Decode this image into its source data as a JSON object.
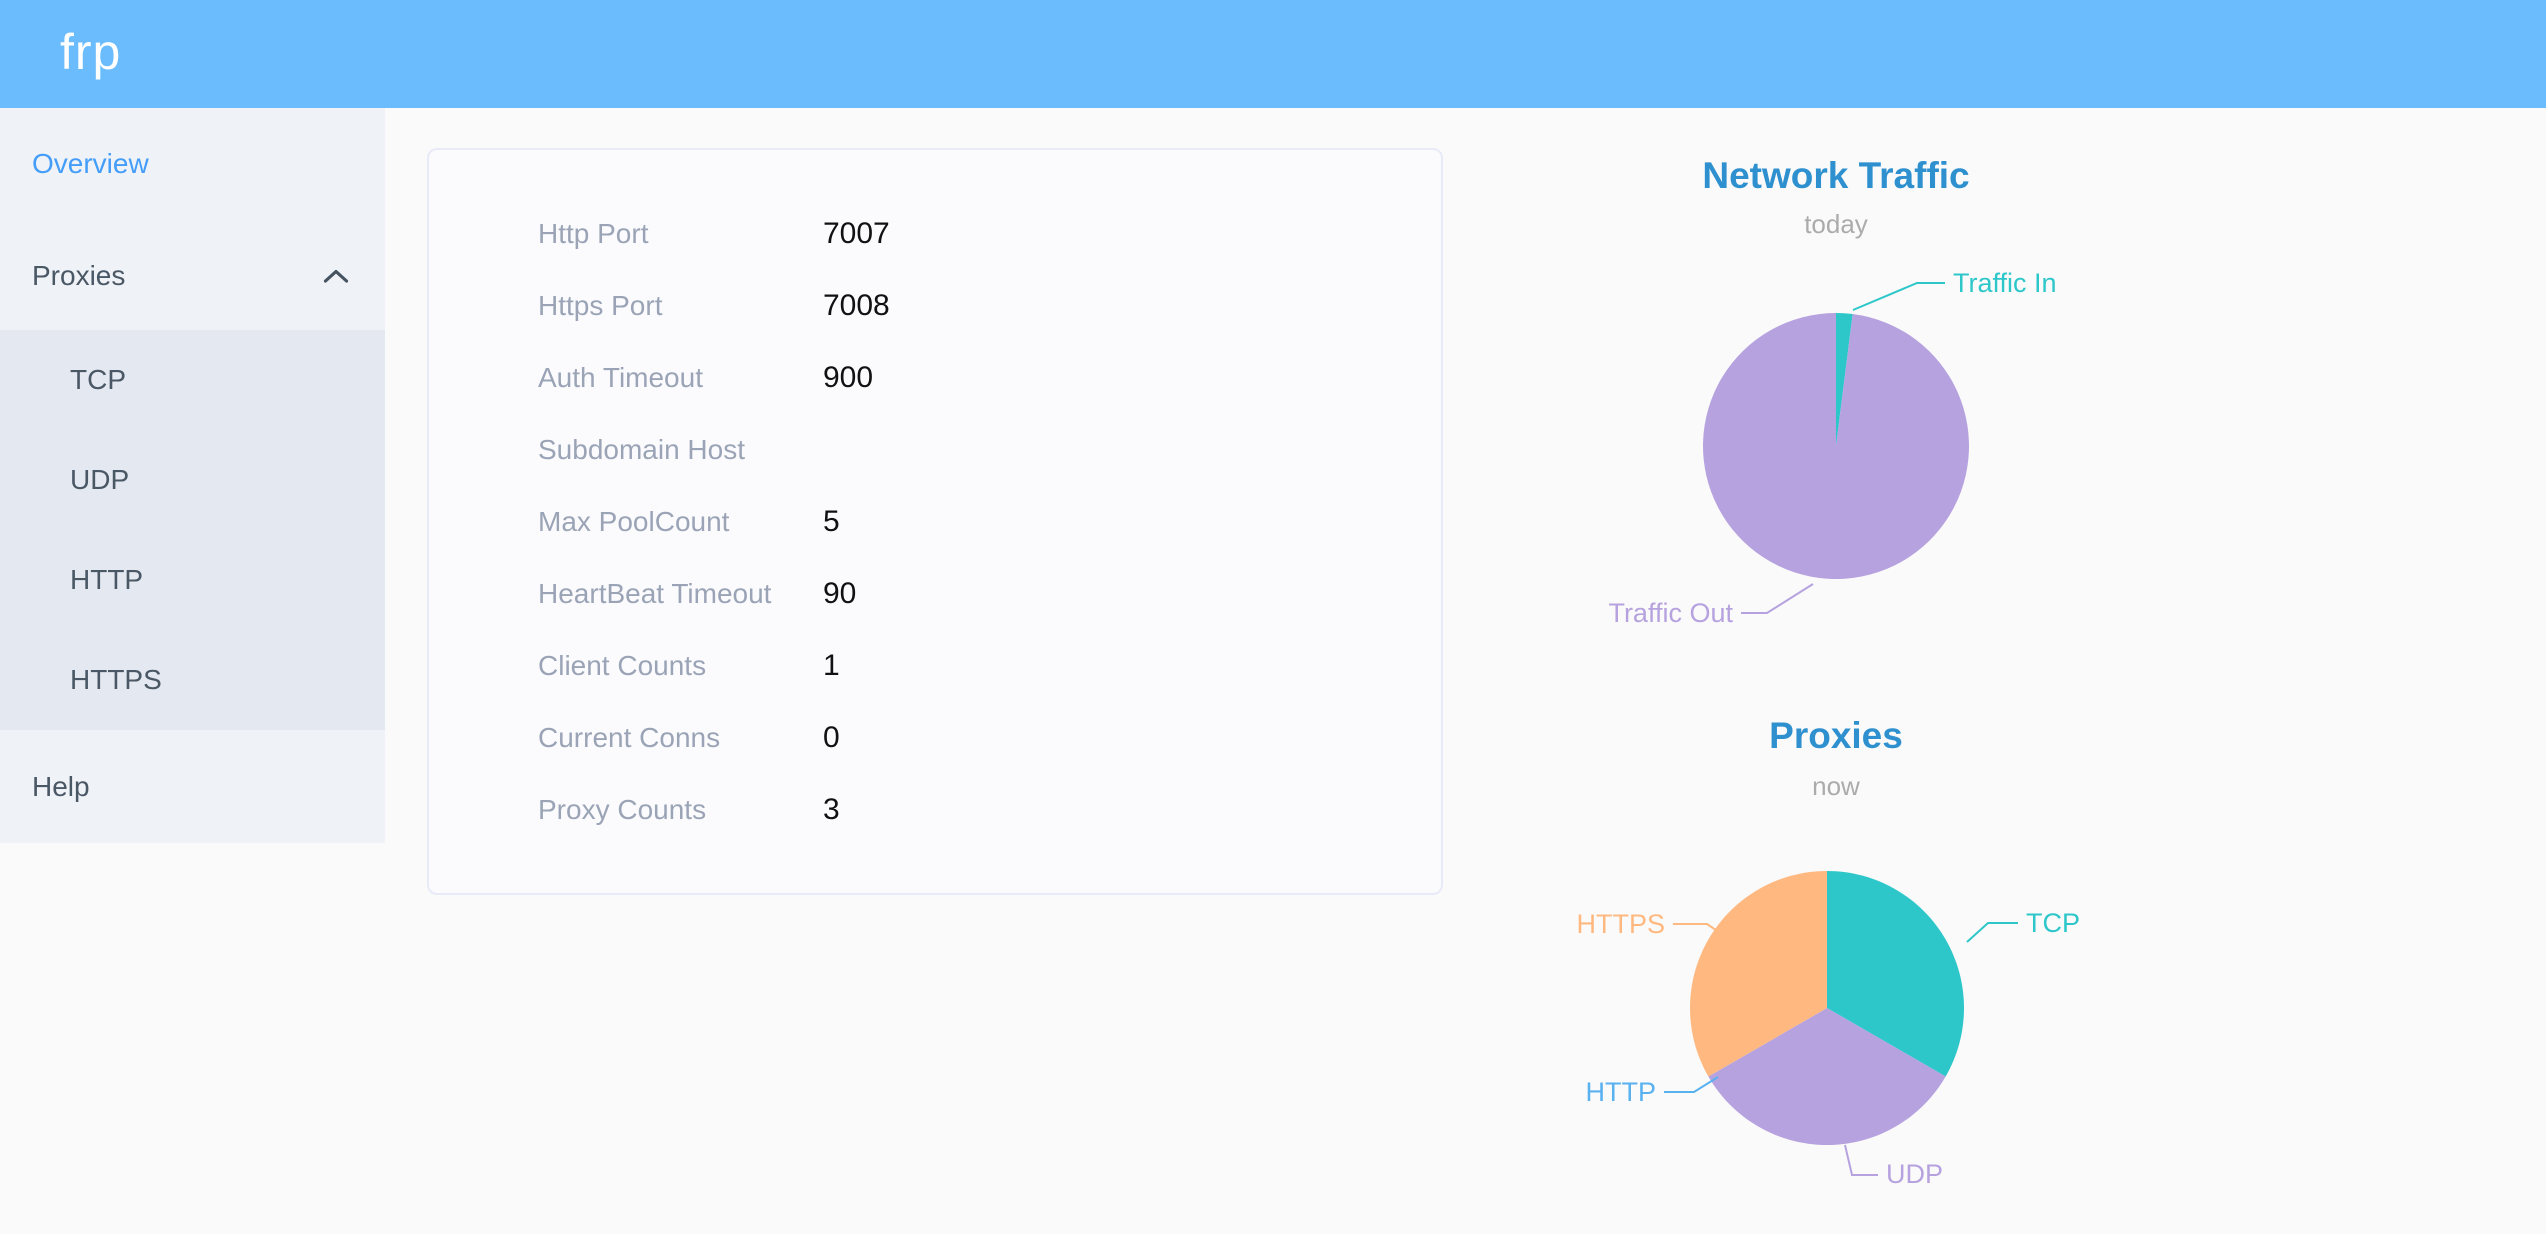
{
  "header": {
    "logo": "frp"
  },
  "sidebar": {
    "items": [
      {
        "label": "Overview",
        "active": true
      },
      {
        "label": "Proxies",
        "expanded": true,
        "children": [
          "TCP",
          "UDP",
          "HTTP",
          "HTTPS"
        ]
      },
      {
        "label": "Help",
        "active": false
      }
    ]
  },
  "overview_card": {
    "rows": [
      {
        "label": "Http Port",
        "value": "7007"
      },
      {
        "label": "Https Port",
        "value": "7008"
      },
      {
        "label": "Auth Timeout",
        "value": "900"
      },
      {
        "label": "Subdomain Host",
        "value": ""
      },
      {
        "label": "Max PoolCount",
        "value": "5"
      },
      {
        "label": "HeartBeat Timeout",
        "value": "90"
      },
      {
        "label": "Client Counts",
        "value": "1"
      },
      {
        "label": "Current Conns",
        "value": "0"
      },
      {
        "label": "Proxy Counts",
        "value": "3"
      }
    ]
  },
  "chart_data": [
    {
      "type": "pie",
      "title": "Network Traffic",
      "subtitle": "today",
      "labels": "callout",
      "legend_position": "outside-callout",
      "series": [
        {
          "name": "Traffic In",
          "value": 2,
          "color": "#2ec7c9"
        },
        {
          "name": "Traffic Out",
          "value": 98,
          "color": "#b6a2de"
        }
      ]
    },
    {
      "type": "pie",
      "title": "Proxies",
      "subtitle": "now",
      "labels": "callout",
      "legend_position": "outside-callout",
      "series": [
        {
          "name": "TCP",
          "value": 1,
          "color": "#2ec7c9"
        },
        {
          "name": "UDP",
          "value": 1,
          "color": "#b6a2de"
        },
        {
          "name": "HTTP",
          "value": 0,
          "color": "#5ab1ef"
        },
        {
          "name": "HTTPS",
          "value": 1,
          "color": "#ffb980"
        }
      ]
    }
  ],
  "palette": {
    "header_bg": "#6bbcfc",
    "sidebar_bg": "#eff2f6",
    "submenu_bg": "#e4e8f1",
    "active_link": "#439df9",
    "menu_text": "#4a5765",
    "chart_title": "#2e90ce",
    "chart_subtitle": "#ababab",
    "card_label": "#9aa4b6",
    "card_value": "#111111"
  }
}
